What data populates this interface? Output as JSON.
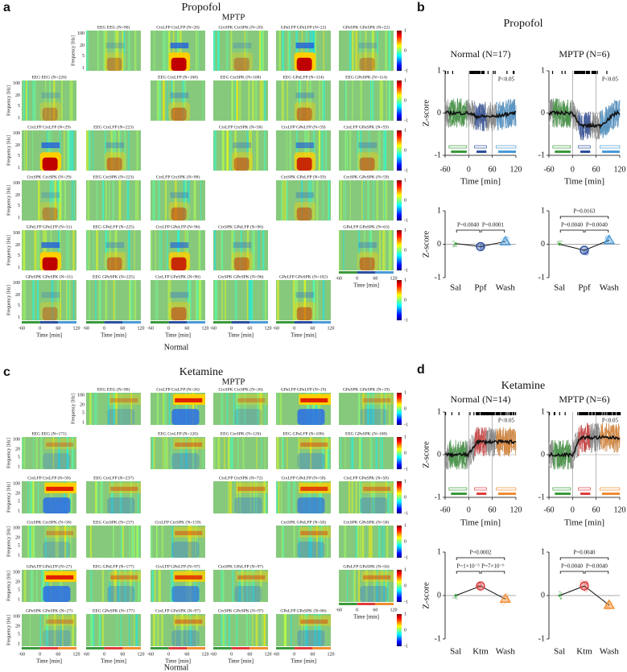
{
  "common": {
    "freq_label": "Frequency [Hz]",
    "freq_ticks": [
      100,
      20,
      5,
      1
    ],
    "time_label": "Time [min]",
    "time_ticks": [
      -60,
      0,
      60,
      120
    ],
    "cbar_ticks": [
      1,
      0,
      -1
    ],
    "z_label": "Z-score",
    "z_ticks": [
      1,
      0,
      -1
    ],
    "sig_label": "P<0.05"
  },
  "panels": {
    "a": {
      "letter": "a",
      "title": "Propofol",
      "top_label": "MPTP",
      "bottom_label": "Normal",
      "rows": [
        [
          null,
          "EEG EEG (N=90)",
          "CtxLFP CtxLFP (N=20)",
          "CtxSPK CtxSPK (N=20)",
          "GPeLFP GPeLFP (N=22)",
          "GPeSPK GPeSPK (N=22)"
        ],
        [
          "EEG EEG (N=220)",
          null,
          "EEG CtxLFP (N=108)",
          "EEG CtxSPK (N=108)",
          "EEG GPeLFP (N=114)",
          "EEG GPeSPK (N=114)"
        ],
        [
          "CtxLFP CtxLFP (N=29)",
          "EEG CtxLFP (N=223)",
          null,
          "CtxLFP CtxSPK (N=58)",
          "CtxLFP GPeLFP (N=59)",
          "CtxLFP GPeSPK (N=59)"
        ],
        [
          "CtxSPK CtxSPK (N=29)",
          "EEG CtxSPK (N=223)",
          "CtxLFP CtxSPK (N=98)",
          null,
          "CtxSPK GPeLFP (N=59)",
          "CtxSPK GPeSPK (N=59)"
        ],
        [
          "GPeLFP GPeLFP (N=31)",
          "EEG GPeLFP (N=225)",
          "CtxLFP GPeLFP (N=96)",
          "CtxSPK GPeLFP (N=96)",
          null,
          "GPeLFP GPeSPK (N=63)"
        ],
        [
          "GPeSPK GPeSPK (N=31)",
          "EEG GPeSPK (N=225)",
          "CtxLFP GPeSPK (N=96)",
          "CtxSPK GPeSPK (N=96)",
          "GPeLFP GPeSPK (N=102)",
          null
        ]
      ]
    },
    "b": {
      "letter": "b",
      "title": "Propofol",
      "colors": [
        "#3a9a3a",
        "#2b4ea0",
        "#4a9ad8"
      ],
      "categories": [
        "Sal",
        "Ppf",
        "Wash"
      ],
      "groups": [
        {
          "name": "Normal (N=17)",
          "p_values": [
            "P=0.0040",
            "P=0.0001"
          ],
          "means": [
            0.02,
            -0.07,
            0.08
          ]
        },
        {
          "name": "MPTP (N=6)",
          "p_values": [
            "P=0.0163",
            "P=0.0040",
            "P=0.0040"
          ],
          "means": [
            0.0,
            -0.18,
            0.12
          ]
        }
      ]
    },
    "c": {
      "letter": "c",
      "title": "Ketamine",
      "top_label": "MPTP",
      "bottom_label": "Normal",
      "rows": [
        [
          null,
          "EEG EEG (N=90)",
          "CtxLFP CtxLFP (N=26)",
          "CtxSPK CtxSPK (N=26)",
          "GPeLFP GPeLFP (N=19)",
          "GPeSPK GPeSPK (N=19)"
        ],
        [
          "EEG EEG (N=171)",
          null,
          "EEG CtxLFP (N=120)",
          "EEG CtxSPK (N=120)",
          "EEG GPeLFP (N=108)",
          "EEG GPeSPK (N=108)"
        ],
        [
          "CtxLFP CtxLFP (N=58)",
          "EEG CtxLFP (N=237)",
          null,
          "CtxLFP CtxSPK (N=72)",
          "CtxLFP GPeLFP (N=58)",
          "CtxLFP GPeSPK (N=58)"
        ],
        [
          "CtxSPK CtxSPK (N=58)",
          "EEG CtxSPK (N=237)",
          "CtxLFP CtxSPK (N=159)",
          null,
          "CtxSPK GPeLFP (N=58)",
          "CtxSPK GPeSPK (N=58)"
        ],
        [
          "GPeLFP GPeLFP (N=27)",
          "EEG GPeLFP (N=177)",
          "CtxLFP GPeLFP (N=97)",
          "CtxSPK GPeLFP (N=97)",
          null,
          "GPeLFP GPeSPK (N=56)"
        ],
        [
          "GPeSPK GPeSPK (N=27)",
          "EEG GPeSPK (N=177)",
          "CtxLFP GPeSPK (N=97)",
          "CtxSPK GPeSPK (N=97)",
          "GPeLFP GPeSPK (N=86)",
          null
        ]
      ]
    },
    "d": {
      "letter": "d",
      "title": "Ketamine",
      "colors": [
        "#3a9a3a",
        "#e03c3c",
        "#f08c30"
      ],
      "categories": [
        "Sal",
        "Ktm",
        "Wash"
      ],
      "groups": [
        {
          "name": "Normal (N=14)",
          "p_values": [
            "P=0.0002",
            "P=1×10⁻⁵",
            "P=7×10⁻⁶"
          ],
          "means": [
            0.0,
            0.22,
            -0.08
          ]
        },
        {
          "name": "MPTP (N=6)",
          "p_values": [
            "P=0.0040",
            "P=0.0040",
            "P=0.0040"
          ],
          "means": [
            0.0,
            0.22,
            -0.22
          ]
        }
      ]
    }
  }
}
